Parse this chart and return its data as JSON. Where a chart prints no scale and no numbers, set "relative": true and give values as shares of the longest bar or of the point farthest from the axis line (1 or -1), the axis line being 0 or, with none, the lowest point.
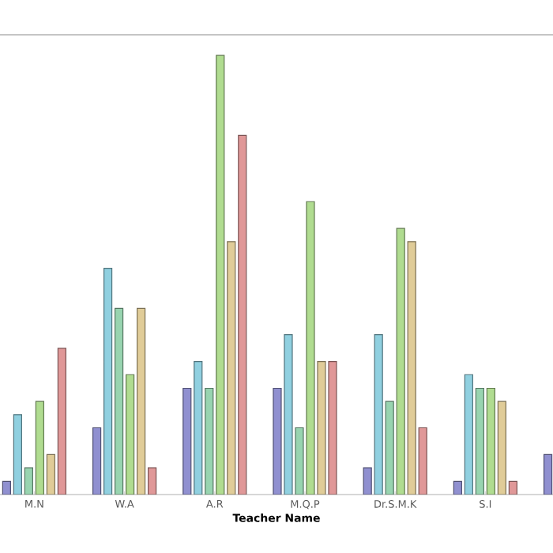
{
  "chart_data": {
    "type": "bar",
    "xlabel": "Teacher Name",
    "relative": true,
    "categories": [
      "M.N",
      "W.A",
      "A.R",
      "M.Q.P",
      "Dr.S.M.K",
      "S.I",
      null
    ],
    "series": [
      {
        "color": "#9090d0",
        "values": [
          0.03,
          0.152,
          0.242,
          0.242,
          0.061,
          0.03,
          0.091
        ]
      },
      {
        "color": "#90d0e0",
        "values": [
          0.182,
          0.515,
          0.303,
          0.364,
          0.364,
          0.273,
          null
        ]
      },
      {
        "color": "#98d4b0",
        "values": [
          0.061,
          0.424,
          0.242,
          0.152,
          0.212,
          0.242,
          null
        ]
      },
      {
        "color": "#b0dc90",
        "values": [
          0.212,
          0.273,
          1.0,
          0.667,
          0.606,
          0.242,
          null
        ]
      },
      {
        "color": "#e0cc98",
        "values": [
          0.091,
          0.424,
          0.576,
          0.303,
          0.576,
          0.212,
          null
        ]
      },
      {
        "color": "#e09898",
        "values": [
          0.333,
          0.061,
          0.818,
          0.303,
          0.152,
          0.03,
          null
        ]
      }
    ]
  }
}
